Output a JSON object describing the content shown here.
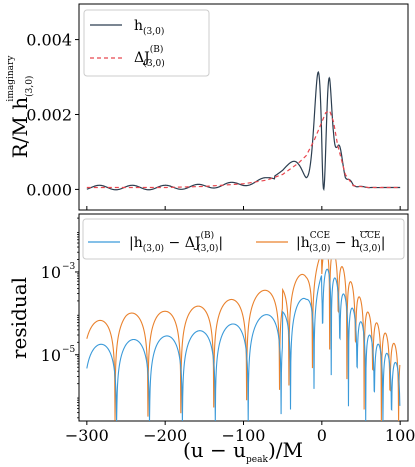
{
  "chart_data": [
    {
      "type": "line",
      "ylabel": "R/M h(3,0)imaginary",
      "ylabel_parts": {
        "main": "R/M h",
        "sub": "(3,0)",
        "sup": "imaginary"
      },
      "xlim": [
        -310,
        110
      ],
      "ylim": [
        -0.00055,
        0.00495
      ],
      "yticks": [
        0.0,
        0.002,
        0.004
      ],
      "ytick_labels": [
        "0.000",
        "0.002",
        "0.004"
      ],
      "xticks": [
        -300,
        -200,
        -100,
        0,
        100
      ],
      "grid": false,
      "legend_placement": "top-left",
      "colors": {
        "strain": "#2c3e50",
        "memory": "#e8474f"
      },
      "series": [
        {
          "key": "strain",
          "name": "h(3,0)",
          "legend_main": "h",
          "legend_sub": "(3,0)",
          "style": "solid",
          "x_start": -300,
          "x_end": 100,
          "approx_peaks": [
            {
              "x": -15,
              "y": 0.0016
            },
            {
              "x": -3,
              "y": 0.0028
            },
            {
              "x": 10,
              "y": 0.0046
            },
            {
              "x": 15,
              "y": 0.0033
            },
            {
              "x": 28,
              "y": 0.0008
            }
          ],
          "approx_troughs": [
            {
              "x": -10,
              "y": -0.0002
            },
            {
              "x": 4,
              "y": -0.0002
            },
            {
              "x": 20,
              "y": -0.00035
            }
          ]
        },
        {
          "key": "memory",
          "name": "ΔJ(3,0)(B)",
          "legend_main": "ΔJ",
          "legend_sub": "(3,0)",
          "legend_sup": "(B)",
          "style": "dashed",
          "x": [
            -300,
            -250,
            -200,
            -150,
            -100,
            -70,
            -50,
            -30,
            -20,
            -10,
            0,
            5,
            10,
            15,
            20,
            30,
            40,
            60,
            100
          ],
          "y": [
            5e-05,
            5e-05,
            5e-05,
            8e-05,
            0.00015,
            0.00025,
            0.0004,
            0.0007,
            0.0009,
            0.0013,
            0.0018,
            0.00205,
            0.0021,
            0.0018,
            0.0012,
            0.0004,
            0.0001,
            5e-05,
            5e-05
          ]
        }
      ]
    },
    {
      "type": "line",
      "ylabel": "residual",
      "xlabel": "(u − upeak)/M",
      "xlabel_parts": {
        "pre": "(u − u",
        "sub": "peak",
        "post": ")/M"
      },
      "xlim": [
        -310,
        110
      ],
      "yscale": "log",
      "ylim_log10": [
        -6.6,
        -1.6
      ],
      "yticks_log10": [
        -5,
        -3
      ],
      "ytick_labels": [
        "10",
        "10"
      ],
      "ytick_exponents": [
        "−5",
        "−3"
      ],
      "xticks": [
        -300,
        -200,
        -100,
        0,
        100
      ],
      "xtick_labels": [
        "−300",
        "−200",
        "−100",
        "0",
        "100"
      ],
      "grid": false,
      "legend_placement": "top",
      "colors": {
        "residual_memory": "#3b9ad9",
        "residual_cce": "#e9822e"
      },
      "series": [
        {
          "key": "residual_memory",
          "name": "|h(3,0) − ΔJ(3,0)(B)|",
          "legend_text": "|h(3,0) − ΔJ(3,0)(B)|",
          "envelope_log10": {
            "x": [
              -300,
              -250,
              -200,
              -150,
              -100,
              -50,
              -20,
              0,
              10,
              30,
              60,
              100
            ],
            "y": [
              -4.8,
              -4.65,
              -4.55,
              -4.4,
              -4.2,
              -3.9,
              -3.6,
              -3.0,
              -2.9,
              -3.6,
              -4.5,
              -5.3
            ]
          }
        },
        {
          "key": "residual_cce",
          "name": "|hCCE(3,0) − hCCE(3,0)|",
          "legend_text": "|h(3,0)CCE − h(3,0)CCE|",
          "envelope_log10": {
            "x": [
              -300,
              -250,
              -200,
              -150,
              -100,
              -50,
              -20,
              0,
              10,
              30,
              60,
              100
            ],
            "y": [
              -4.25,
              -4.0,
              -3.95,
              -3.8,
              -3.6,
              -3.3,
              -3.0,
              -2.5,
              -2.35,
              -3.0,
              -4.0,
              -4.9
            ]
          }
        }
      ]
    }
  ]
}
